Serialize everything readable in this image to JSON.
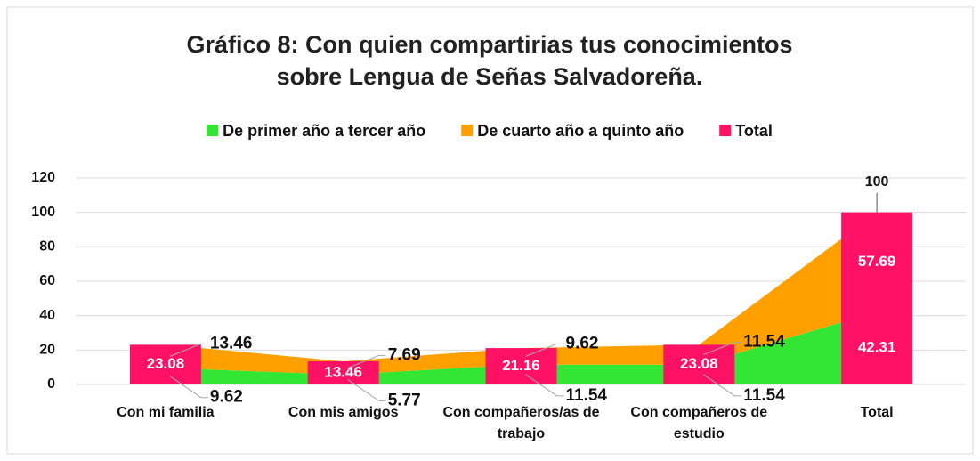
{
  "chart_data": {
    "type": "area_bar",
    "title": "Gráfico 8: Con quien compartirias tus conocimientos sobre Lengua de Señas Salvadoreña.",
    "categories": [
      "Con mi familia",
      "Con mis amigos",
      "Con compañeros/as de trabajo",
      "Con compañeros de estudio",
      "Total"
    ],
    "series": [
      {
        "name": "De primer año a tercer año",
        "color": "#33e633",
        "kind": "area",
        "values": [
          9.62,
          5.77,
          11.54,
          11.54,
          42.31
        ]
      },
      {
        "name": "De cuarto año a quinto año",
        "color": "#ffa000",
        "kind": "area",
        "values": [
          13.46,
          7.69,
          9.62,
          11.54,
          57.69
        ]
      },
      {
        "name": "Total",
        "color": "#ff1166",
        "kind": "bar",
        "values": [
          23.08,
          13.46,
          21.16,
          23.08,
          100
        ]
      }
    ],
    "ylim": [
      0,
      120
    ],
    "yticks": [
      0,
      20,
      40,
      60,
      80,
      100,
      120
    ],
    "grid": true,
    "legend": "top"
  }
}
